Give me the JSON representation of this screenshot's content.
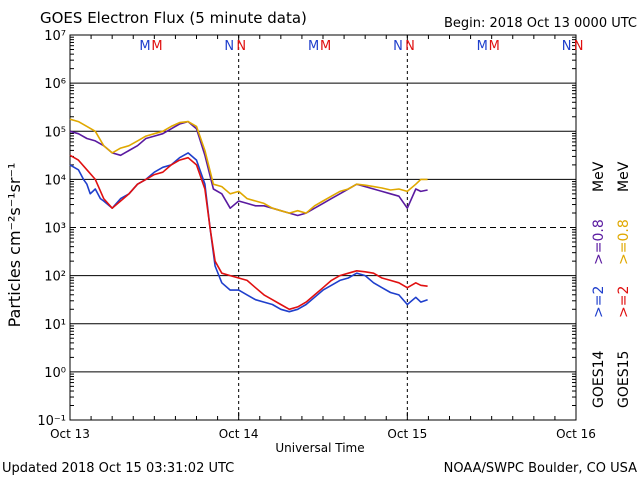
{
  "header": {
    "title": "GOES Electron Flux (5 minute data)",
    "begin": "Begin: 2018 Oct 13 0000 UTC"
  },
  "footer": {
    "updated": "Updated 2018 Oct 15 03:31:02 UTC",
    "credit": "NOAA/SWPC Boulder, CO USA"
  },
  "legend": {
    "goes14": "GOES14",
    "goes15": "GOES15",
    "ge2": ">=2",
    "ge08": ">=0.8",
    "mev": "MeV"
  },
  "colors": {
    "goes14_ge2": "#1f3fcc",
    "goes15_ge2": "#e01010",
    "goes14_ge08": "#5a1aa0",
    "goes15_ge08": "#e0a800",
    "m_marker_blue": "#1f3fcc",
    "m_marker_red": "#e01010"
  },
  "markers": {
    "m_label": "M",
    "n_label": "N",
    "day_positions": [
      {
        "day": 0.5,
        "m": true
      },
      {
        "day": 1.0,
        "n": true
      },
      {
        "day": 1.5,
        "m": true
      },
      {
        "day": 2.0,
        "n": true
      },
      {
        "day": 2.5,
        "m": true
      },
      {
        "day": 3.0,
        "n": true
      }
    ]
  },
  "chart_data": {
    "type": "line",
    "title": "GOES Electron Flux (5 minute data)",
    "xlabel": "Universal Time",
    "ylabel": "Particles cm⁻²s⁻¹sr⁻¹",
    "xlim_days": [
      0,
      3
    ],
    "ylim_log10": [
      -1,
      7
    ],
    "x_ticks": [
      "Oct 13",
      "Oct 14",
      "Oct 15",
      "Oct 16"
    ],
    "y_ticks": [
      "10⁻¹",
      "10⁰",
      "10¹",
      "10²",
      "10³",
      "10⁴",
      "10⁵",
      "10⁶",
      "10⁷"
    ],
    "threshold_log10": 3,
    "series": [
      {
        "name": "GOES14 >=0.8 MeV",
        "color": "#5a1aa0",
        "points": [
          [
            0,
            5.0
          ],
          [
            0.05,
            4.95
          ],
          [
            0.1,
            4.85
          ],
          [
            0.15,
            4.8
          ],
          [
            0.2,
            4.7
          ],
          [
            0.25,
            4.55
          ],
          [
            0.3,
            4.5
          ],
          [
            0.35,
            4.6
          ],
          [
            0.4,
            4.7
          ],
          [
            0.45,
            4.85
          ],
          [
            0.5,
            4.9
          ],
          [
            0.55,
            4.95
          ],
          [
            0.6,
            5.05
          ],
          [
            0.65,
            5.15
          ],
          [
            0.7,
            5.2
          ],
          [
            0.75,
            5.05
          ],
          [
            0.8,
            4.5
          ],
          [
            0.85,
            3.8
          ],
          [
            0.9,
            3.7
          ],
          [
            0.95,
            3.4
          ],
          [
            1.0,
            3.55
          ],
          [
            1.05,
            3.5
          ],
          [
            1.1,
            3.45
          ],
          [
            1.15,
            3.45
          ],
          [
            1.2,
            3.4
          ],
          [
            1.25,
            3.35
          ],
          [
            1.3,
            3.3
          ],
          [
            1.35,
            3.25
          ],
          [
            1.4,
            3.3
          ],
          [
            1.45,
            3.4
          ],
          [
            1.5,
            3.5
          ],
          [
            1.55,
            3.6
          ],
          [
            1.6,
            3.7
          ],
          [
            1.65,
            3.8
          ],
          [
            1.7,
            3.9
          ],
          [
            1.75,
            3.85
          ],
          [
            1.8,
            3.8
          ],
          [
            1.85,
            3.75
          ],
          [
            1.9,
            3.7
          ],
          [
            1.95,
            3.65
          ],
          [
            2.0,
            3.4
          ],
          [
            2.05,
            3.8
          ],
          [
            2.08,
            3.75
          ],
          [
            2.12,
            3.78
          ]
        ]
      },
      {
        "name": "GOES15 >=0.8 MeV",
        "color": "#e0a800",
        "points": [
          [
            0,
            5.25
          ],
          [
            0.05,
            5.2
          ],
          [
            0.1,
            5.1
          ],
          [
            0.15,
            5.0
          ],
          [
            0.2,
            4.7
          ],
          [
            0.25,
            4.55
          ],
          [
            0.3,
            4.65
          ],
          [
            0.35,
            4.7
          ],
          [
            0.4,
            4.8
          ],
          [
            0.45,
            4.9
          ],
          [
            0.5,
            4.95
          ],
          [
            0.55,
            5.0
          ],
          [
            0.6,
            5.1
          ],
          [
            0.65,
            5.18
          ],
          [
            0.7,
            5.2
          ],
          [
            0.75,
            5.1
          ],
          [
            0.8,
            4.6
          ],
          [
            0.85,
            3.9
          ],
          [
            0.9,
            3.85
          ],
          [
            0.95,
            3.7
          ],
          [
            1.0,
            3.75
          ],
          [
            1.05,
            3.6
          ],
          [
            1.1,
            3.55
          ],
          [
            1.15,
            3.5
          ],
          [
            1.2,
            3.4
          ],
          [
            1.25,
            3.35
          ],
          [
            1.3,
            3.3
          ],
          [
            1.35,
            3.35
          ],
          [
            1.4,
            3.3
          ],
          [
            1.45,
            3.45
          ],
          [
            1.5,
            3.55
          ],
          [
            1.55,
            3.65
          ],
          [
            1.6,
            3.75
          ],
          [
            1.65,
            3.8
          ],
          [
            1.7,
            3.9
          ],
          [
            1.75,
            3.88
          ],
          [
            1.8,
            3.85
          ],
          [
            1.85,
            3.82
          ],
          [
            1.9,
            3.78
          ],
          [
            1.95,
            3.8
          ],
          [
            2.0,
            3.75
          ],
          [
            2.05,
            3.9
          ],
          [
            2.08,
            4.0
          ],
          [
            2.12,
            4.0
          ]
        ]
      },
      {
        "name": "GOES14 >=2 MeV",
        "color": "#1f3fcc",
        "points": [
          [
            0,
            4.3
          ],
          [
            0.05,
            4.2
          ],
          [
            0.08,
            4.0
          ],
          [
            0.1,
            3.9
          ],
          [
            0.12,
            3.7
          ],
          [
            0.15,
            3.8
          ],
          [
            0.18,
            3.6
          ],
          [
            0.2,
            3.55
          ],
          [
            0.25,
            3.4
          ],
          [
            0.3,
            3.6
          ],
          [
            0.35,
            3.7
          ],
          [
            0.4,
            3.9
          ],
          [
            0.45,
            4.0
          ],
          [
            0.5,
            4.15
          ],
          [
            0.55,
            4.25
          ],
          [
            0.6,
            4.3
          ],
          [
            0.65,
            4.45
          ],
          [
            0.7,
            4.55
          ],
          [
            0.75,
            4.4
          ],
          [
            0.8,
            3.9
          ],
          [
            0.83,
            3.0
          ],
          [
            0.86,
            2.2
          ],
          [
            0.9,
            1.85
          ],
          [
            0.95,
            1.7
          ],
          [
            1.0,
            1.7
          ],
          [
            1.05,
            1.6
          ],
          [
            1.1,
            1.5
          ],
          [
            1.15,
            1.45
          ],
          [
            1.2,
            1.4
          ],
          [
            1.25,
            1.3
          ],
          [
            1.3,
            1.25
          ],
          [
            1.35,
            1.3
          ],
          [
            1.4,
            1.4
          ],
          [
            1.45,
            1.55
          ],
          [
            1.5,
            1.7
          ],
          [
            1.55,
            1.8
          ],
          [
            1.6,
            1.9
          ],
          [
            1.65,
            1.95
          ],
          [
            1.7,
            2.05
          ],
          [
            1.75,
            2.0
          ],
          [
            1.8,
            1.85
          ],
          [
            1.85,
            1.75
          ],
          [
            1.9,
            1.65
          ],
          [
            1.95,
            1.6
          ],
          [
            2.0,
            1.4
          ],
          [
            2.05,
            1.55
          ],
          [
            2.08,
            1.45
          ],
          [
            2.12,
            1.5
          ]
        ]
      },
      {
        "name": "GOES15 >=2 MeV",
        "color": "#e01010",
        "points": [
          [
            0,
            4.5
          ],
          [
            0.05,
            4.4
          ],
          [
            0.1,
            4.2
          ],
          [
            0.15,
            4.0
          ],
          [
            0.2,
            3.6
          ],
          [
            0.25,
            3.4
          ],
          [
            0.3,
            3.55
          ],
          [
            0.35,
            3.7
          ],
          [
            0.4,
            3.9
          ],
          [
            0.45,
            4.0
          ],
          [
            0.5,
            4.1
          ],
          [
            0.55,
            4.15
          ],
          [
            0.6,
            4.3
          ],
          [
            0.65,
            4.4
          ],
          [
            0.7,
            4.45
          ],
          [
            0.75,
            4.3
          ],
          [
            0.8,
            3.8
          ],
          [
            0.83,
            3.0
          ],
          [
            0.86,
            2.3
          ],
          [
            0.9,
            2.05
          ],
          [
            0.95,
            2.0
          ],
          [
            1.0,
            1.95
          ],
          [
            1.05,
            1.9
          ],
          [
            1.1,
            1.75
          ],
          [
            1.15,
            1.6
          ],
          [
            1.2,
            1.5
          ],
          [
            1.25,
            1.4
          ],
          [
            1.3,
            1.3
          ],
          [
            1.35,
            1.35
          ],
          [
            1.4,
            1.45
          ],
          [
            1.45,
            1.6
          ],
          [
            1.5,
            1.75
          ],
          [
            1.55,
            1.9
          ],
          [
            1.6,
            2.0
          ],
          [
            1.65,
            2.05
          ],
          [
            1.7,
            2.1
          ],
          [
            1.75,
            2.08
          ],
          [
            1.8,
            2.05
          ],
          [
            1.85,
            1.95
          ],
          [
            1.9,
            1.9
          ],
          [
            1.95,
            1.85
          ],
          [
            2.0,
            1.75
          ],
          [
            2.05,
            1.85
          ],
          [
            2.08,
            1.8
          ],
          [
            2.12,
            1.78
          ]
        ]
      }
    ]
  }
}
